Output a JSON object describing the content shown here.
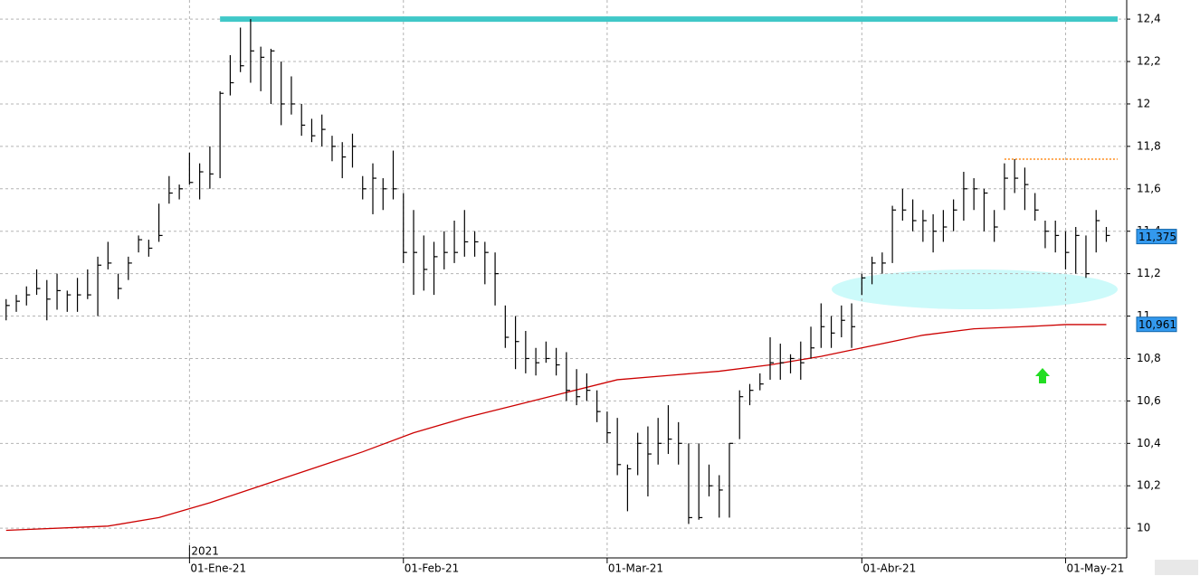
{
  "chart_data": {
    "type": "ohlc",
    "xlim": [
      -0.6,
      110
    ],
    "ylim": [
      9.86,
      12.49
    ],
    "xticks": [
      {
        "value": 18,
        "label": "01-Ene-21"
      },
      {
        "value": 39,
        "label": "01-Feb-21"
      },
      {
        "value": 59,
        "label": "01-Mar-21"
      },
      {
        "value": 84,
        "label": "01-Abr-21"
      },
      {
        "value": 104,
        "label": "01-May-21"
      }
    ],
    "year_label": {
      "value": 18,
      "label": "2021"
    },
    "yticks": [
      {
        "value": 10,
        "label": "10"
      },
      {
        "value": 10.2,
        "label": "10,2"
      },
      {
        "value": 10.4,
        "label": "10,4"
      },
      {
        "value": 10.6,
        "label": "10,6"
      },
      {
        "value": 10.8,
        "label": "10,8"
      },
      {
        "value": 11,
        "label": "11"
      },
      {
        "value": 11.2,
        "label": "11,2"
      },
      {
        "value": 11.4,
        "label": "11,4"
      },
      {
        "value": 11.6,
        "label": "11,6"
      },
      {
        "value": 11.8,
        "label": "11,8"
      },
      {
        "value": 12,
        "label": "12"
      },
      {
        "value": 12.2,
        "label": "12,2"
      },
      {
        "value": 12.4,
        "label": "12,4"
      }
    ],
    "grid": true,
    "color": "#000000",
    "high": [
      11.08,
      11.1,
      11.14,
      11.22,
      11.17,
      11.2,
      11.12,
      11.18,
      11.22,
      11.28,
      11.35,
      11.2,
      11.28,
      11.38,
      11.36,
      11.53,
      11.66,
      11.62,
      11.77,
      11.72,
      11.8,
      12.06,
      12.23,
      12.36,
      12.4,
      12.27,
      12.26,
      12.2,
      12.13,
      12.0,
      11.93,
      11.95,
      11.85,
      11.82,
      11.86,
      11.66,
      11.72,
      11.65,
      11.78,
      11.58,
      11.5,
      11.38,
      11.35,
      11.4,
      11.45,
      11.5,
      11.4,
      11.35,
      11.3,
      11.05,
      11.0,
      10.93,
      10.85,
      10.88,
      10.85,
      10.83,
      10.75,
      10.73,
      10.65,
      10.55,
      10.52,
      10.3,
      10.45,
      10.48,
      10.52,
      10.58,
      10.5,
      10.4,
      10.4,
      10.3,
      10.25,
      10.4,
      10.65,
      10.68,
      10.73,
      10.9,
      10.87,
      10.82,
      10.88,
      10.95,
      11.06,
      11.0,
      11.05,
      11.06,
      11.2,
      11.28,
      11.3,
      11.52,
      11.6,
      11.55,
      11.5,
      11.48,
      11.5,
      11.55,
      11.68,
      11.65,
      11.6,
      11.5,
      11.72,
      11.74,
      11.7,
      11.58,
      11.45,
      11.45,
      11.4,
      11.42,
      11.38,
      11.5,
      11.42
    ],
    "low": [
      10.98,
      11.02,
      11.05,
      11.1,
      10.98,
      11.03,
      11.02,
      11.02,
      11.08,
      11.0,
      11.22,
      11.08,
      11.17,
      11.3,
      11.28,
      11.35,
      11.53,
      11.55,
      11.62,
      11.55,
      11.6,
      11.65,
      12.04,
      12.15,
      12.1,
      12.06,
      12.0,
      11.9,
      11.95,
      11.85,
      11.82,
      11.8,
      11.73,
      11.65,
      11.7,
      11.55,
      11.48,
      11.5,
      11.55,
      11.25,
      11.1,
      11.12,
      11.1,
      11.22,
      11.25,
      11.28,
      11.28,
      11.15,
      11.05,
      10.85,
      10.75,
      10.73,
      10.72,
      10.78,
      10.72,
      10.6,
      10.58,
      10.6,
      10.5,
      10.4,
      10.25,
      10.08,
      10.25,
      10.15,
      10.3,
      10.35,
      10.3,
      10.02,
      10.04,
      10.15,
      10.05,
      10.05,
      10.42,
      10.58,
      10.65,
      10.7,
      10.7,
      10.73,
      10.7,
      10.8,
      10.85,
      10.85,
      10.9,
      10.85,
      11.1,
      11.15,
      11.2,
      11.25,
      11.45,
      11.4,
      11.35,
      11.3,
      11.35,
      11.4,
      11.45,
      11.5,
      11.4,
      11.35,
      11.5,
      11.58,
      11.5,
      11.45,
      11.32,
      11.3,
      11.22,
      11.2,
      11.18,
      11.3,
      11.35
    ],
    "close": [
      11.05,
      11.07,
      11.1,
      11.13,
      11.08,
      11.12,
      11.1,
      11.1,
      11.1,
      11.24,
      11.25,
      11.13,
      11.25,
      11.36,
      11.32,
      11.38,
      11.58,
      11.6,
      11.63,
      11.68,
      11.67,
      12.05,
      12.1,
      12.18,
      12.25,
      12.22,
      12.25,
      12.0,
      12.0,
      11.9,
      11.85,
      11.88,
      11.8,
      11.75,
      11.8,
      11.6,
      11.65,
      11.6,
      11.6,
      11.3,
      11.3,
      11.22,
      11.28,
      11.3,
      11.3,
      11.35,
      11.35,
      11.3,
      11.2,
      10.9,
      10.88,
      10.8,
      10.78,
      10.8,
      10.77,
      10.65,
      10.62,
      10.65,
      10.55,
      10.45,
      10.3,
      10.28,
      10.4,
      10.35,
      10.4,
      10.42,
      10.4,
      10.05,
      10.05,
      10.2,
      10.18,
      10.4,
      10.62,
      10.65,
      10.68,
      10.78,
      10.78,
      10.8,
      10.78,
      10.85,
      10.95,
      10.92,
      10.98,
      10.95,
      11.18,
      11.25,
      11.25,
      11.5,
      11.5,
      11.45,
      11.45,
      11.4,
      11.42,
      11.5,
      11.6,
      11.6,
      11.58,
      11.42,
      11.65,
      11.65,
      11.62,
      11.5,
      11.4,
      11.38,
      11.3,
      11.38,
      11.2,
      11.45,
      11.38
    ],
    "moving_average": {
      "color": "#cc0000",
      "x": [
        0,
        10,
        15,
        20,
        25,
        30,
        35,
        40,
        45,
        50,
        55,
        60,
        65,
        70,
        75,
        80,
        85,
        90,
        95,
        100,
        104,
        108
      ],
      "values": [
        9.99,
        10.01,
        10.05,
        10.12,
        10.2,
        10.28,
        10.36,
        10.45,
        10.52,
        10.58,
        10.64,
        10.7,
        10.72,
        10.74,
        10.77,
        10.81,
        10.86,
        10.91,
        10.94,
        10.95,
        10.96,
        10.96
      ]
    },
    "levels": [
      {
        "value": 12.4,
        "color": "#40c8c8"
      },
      {
        "value": 11.74,
        "color": "#ff8c1a"
      }
    ],
    "price_tags": [
      {
        "value": 11.375,
        "label": "11,375"
      },
      {
        "value": 10.961,
        "label": "10,961"
      }
    ]
  }
}
